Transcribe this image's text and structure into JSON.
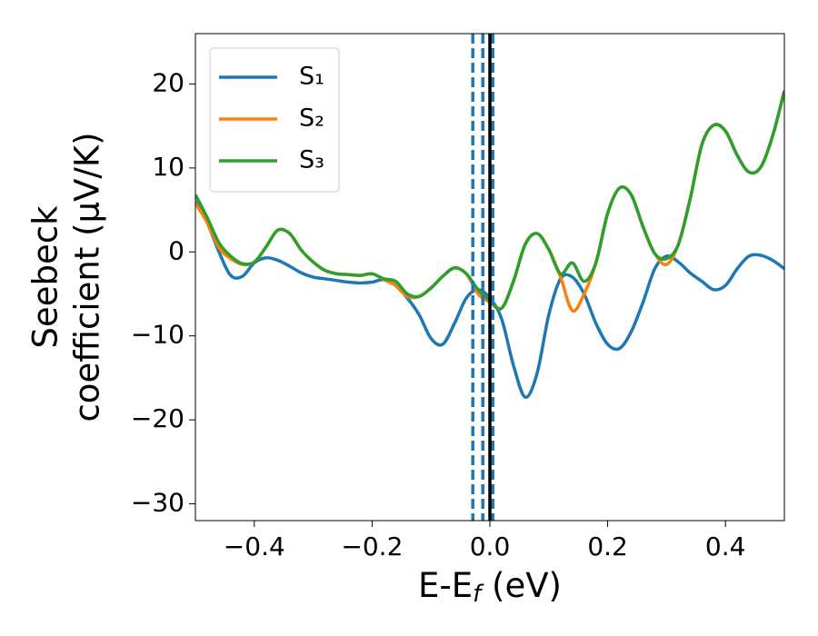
{
  "chart_data": {
    "type": "line",
    "xlabel": [
      "E-E",
      "f",
      " (eV)"
    ],
    "ylabel": [
      "Seebeck",
      "coefficient  (μV/K)"
    ],
    "x": [
      -0.5,
      -0.48,
      -0.46,
      -0.44,
      -0.42,
      -0.4,
      -0.38,
      -0.36,
      -0.34,
      -0.32,
      -0.3,
      -0.28,
      -0.26,
      -0.24,
      -0.22,
      -0.2,
      -0.18,
      -0.16,
      -0.14,
      -0.12,
      -0.1,
      -0.08,
      -0.06,
      -0.04,
      -0.02,
      0,
      0.02,
      0.04,
      0.06,
      0.08,
      0.1,
      0.12,
      0.14,
      0.16,
      0.18,
      0.2,
      0.22,
      0.24,
      0.26,
      0.28,
      0.3,
      0.32,
      0.34,
      0.36,
      0.38,
      0.4,
      0.42,
      0.44,
      0.46,
      0.48,
      0.5
    ],
    "series": [
      {
        "name": "S₁",
        "color": "#1f77b4",
        "values": [
          6.0,
          3.5,
          0.0,
          -2.8,
          -2.9,
          -1.3,
          -0.7,
          -1.0,
          -1.7,
          -2.5,
          -3.0,
          -3.2,
          -3.4,
          -3.6,
          -3.7,
          -3.6,
          -3.3,
          -4.0,
          -5.5,
          -7.5,
          -10.3,
          -11.0,
          -8.5,
          -5.5,
          -4.5,
          -5.5,
          -8.0,
          -13.5,
          -17.3,
          -14.5,
          -7.5,
          -3.2,
          -3.0,
          -5.0,
          -8.5,
          -11.0,
          -11.5,
          -9.5,
          -6.0,
          -2.0,
          -0.5,
          -1.2,
          -2.5,
          -3.5,
          -4.5,
          -4.0,
          -2.0,
          -0.5,
          -0.4,
          -1.0,
          -2.0
        ]
      },
      {
        "name": "S₂",
        "color": "#ff7f0e",
        "values": [
          5.8,
          3.5,
          0.5,
          -0.8,
          -1.5,
          -1.2,
          0.6,
          2.6,
          2.2,
          0.2,
          -1.2,
          -2.2,
          -2.6,
          -2.7,
          -2.8,
          -2.6,
          -3.3,
          -4.0,
          -5.3,
          -5.3,
          -4.3,
          -2.9,
          -1.9,
          -2.6,
          -5.0,
          -6.0,
          -6.7,
          -3.5,
          0.9,
          2.2,
          0.3,
          -3.0,
          -7.0,
          -5.0,
          -1.3,
          4.6,
          7.6,
          6.8,
          3.0,
          -0.2,
          -1.5,
          0.9,
          6.3,
          12.8,
          15.1,
          14.4,
          11.5,
          9.5,
          10.1,
          13.8,
          19.2
        ]
      },
      {
        "name": "S₃",
        "color": "#2ca02c",
        "values": [
          6.8,
          4.1,
          1.1,
          -0.5,
          -1.4,
          -1.2,
          0.6,
          2.6,
          2.2,
          0.2,
          -1.2,
          -2.2,
          -2.6,
          -2.7,
          -2.8,
          -2.6,
          -3.2,
          -3.5,
          -5.0,
          -5.3,
          -4.3,
          -2.9,
          -1.9,
          -2.6,
          -4.5,
          -5.8,
          -6.7,
          -3.5,
          0.9,
          2.2,
          0.3,
          -2.6,
          -1.3,
          -3.5,
          -1.3,
          4.6,
          7.6,
          6.8,
          3.0,
          -0.2,
          -0.8,
          0.9,
          6.3,
          12.8,
          15.1,
          14.4,
          11.5,
          9.5,
          10.1,
          13.8,
          19.2
        ]
      }
    ],
    "vlines": [
      {
        "x": -0.029,
        "color": "#1f77b4",
        "style": "dashed"
      },
      {
        "x": -0.012,
        "color": "#1f77b4",
        "style": "dashed"
      },
      {
        "x": 0.005,
        "color": "#1f77b4",
        "style": "dashed"
      },
      {
        "x": 0,
        "color": "#000000",
        "style": "solid"
      }
    ],
    "xlim": [
      -0.5,
      0.5
    ],
    "ylim": [
      -32,
      26
    ],
    "xticks": [
      {
        "value": -0.4,
        "label": "−0.4"
      },
      {
        "value": -0.2,
        "label": "−0.2"
      },
      {
        "value": 0,
        "label": "0.0"
      },
      0.2,
      0.4
    ],
    "yticks": [
      {
        "value": -30,
        "label": "−30"
      },
      {
        "value": -20,
        "label": "−20"
      },
      {
        "value": -10,
        "label": "−10"
      },
      0,
      10,
      20
    ],
    "legend": "upper left"
  }
}
